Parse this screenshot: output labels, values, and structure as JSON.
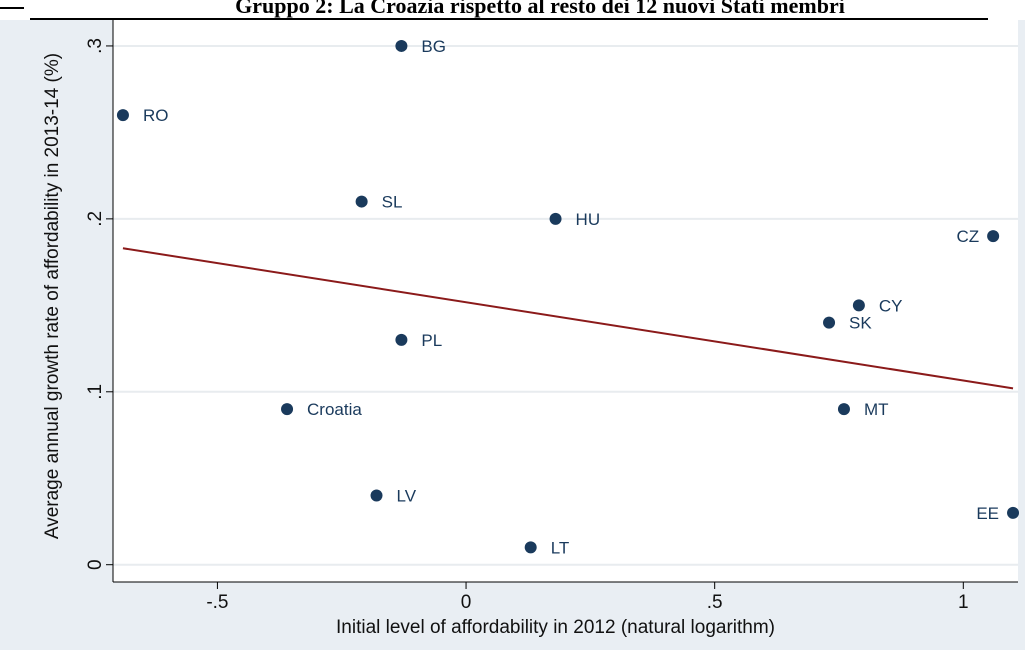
{
  "page": {
    "heading": "Gruppo 2: La Croazia rispetto al resto dei 12 nuovi Stati membri"
  },
  "chart_data": {
    "type": "scatter",
    "xlabel": "Initial level of affordability in 2012 (natural logarithm)",
    "ylabel": "Average annual growth rate of affordability in 2013-14 (%)",
    "xlim": [
      -0.71,
      1.11
    ],
    "ylim": [
      -0.01,
      0.315
    ],
    "x_ticks": [
      {
        "value": -0.5,
        "label": "-.5"
      },
      {
        "value": 0,
        "label": "0"
      },
      {
        "value": 0.5,
        "label": ".5"
      },
      {
        "value": 1,
        "label": "1"
      }
    ],
    "y_ticks": [
      {
        "value": 0,
        "label": "0"
      },
      {
        "value": 0.1,
        "label": ".1"
      },
      {
        "value": 0.2,
        "label": ".2"
      },
      {
        "value": 0.3,
        "label": ".3"
      }
    ],
    "grid": "horizontal",
    "marker_color": "#1a3a5c",
    "fit_color": "#8b1a1a",
    "background_color": "#e9eef3",
    "points": [
      {
        "label": "BG",
        "x": -0.13,
        "y": 0.3,
        "label_side": "right"
      },
      {
        "label": "RO",
        "x": -0.69,
        "y": 0.26,
        "label_side": "right"
      },
      {
        "label": "SL",
        "x": -0.21,
        "y": 0.21,
        "label_side": "right"
      },
      {
        "label": "HU",
        "x": 0.18,
        "y": 0.2,
        "label_side": "right"
      },
      {
        "label": "CZ",
        "x": 1.06,
        "y": 0.19,
        "label_side": "left"
      },
      {
        "label": "CY",
        "x": 0.79,
        "y": 0.15,
        "label_side": "right"
      },
      {
        "label": "SK",
        "x": 0.73,
        "y": 0.14,
        "label_side": "right"
      },
      {
        "label": "PL",
        "x": -0.13,
        "y": 0.13,
        "label_side": "right"
      },
      {
        "label": "Croatia",
        "x": -0.36,
        "y": 0.09,
        "label_side": "right"
      },
      {
        "label": "MT",
        "x": 0.76,
        "y": 0.09,
        "label_side": "right"
      },
      {
        "label": "LV",
        "x": -0.18,
        "y": 0.04,
        "label_side": "right"
      },
      {
        "label": "EE",
        "x": 1.1,
        "y": 0.03,
        "label_side": "left"
      },
      {
        "label": "LT",
        "x": 0.13,
        "y": 0.01,
        "label_side": "right"
      }
    ],
    "fit_line": {
      "x": [
        -0.69,
        1.1
      ],
      "y": [
        0.183,
        0.102
      ]
    }
  }
}
